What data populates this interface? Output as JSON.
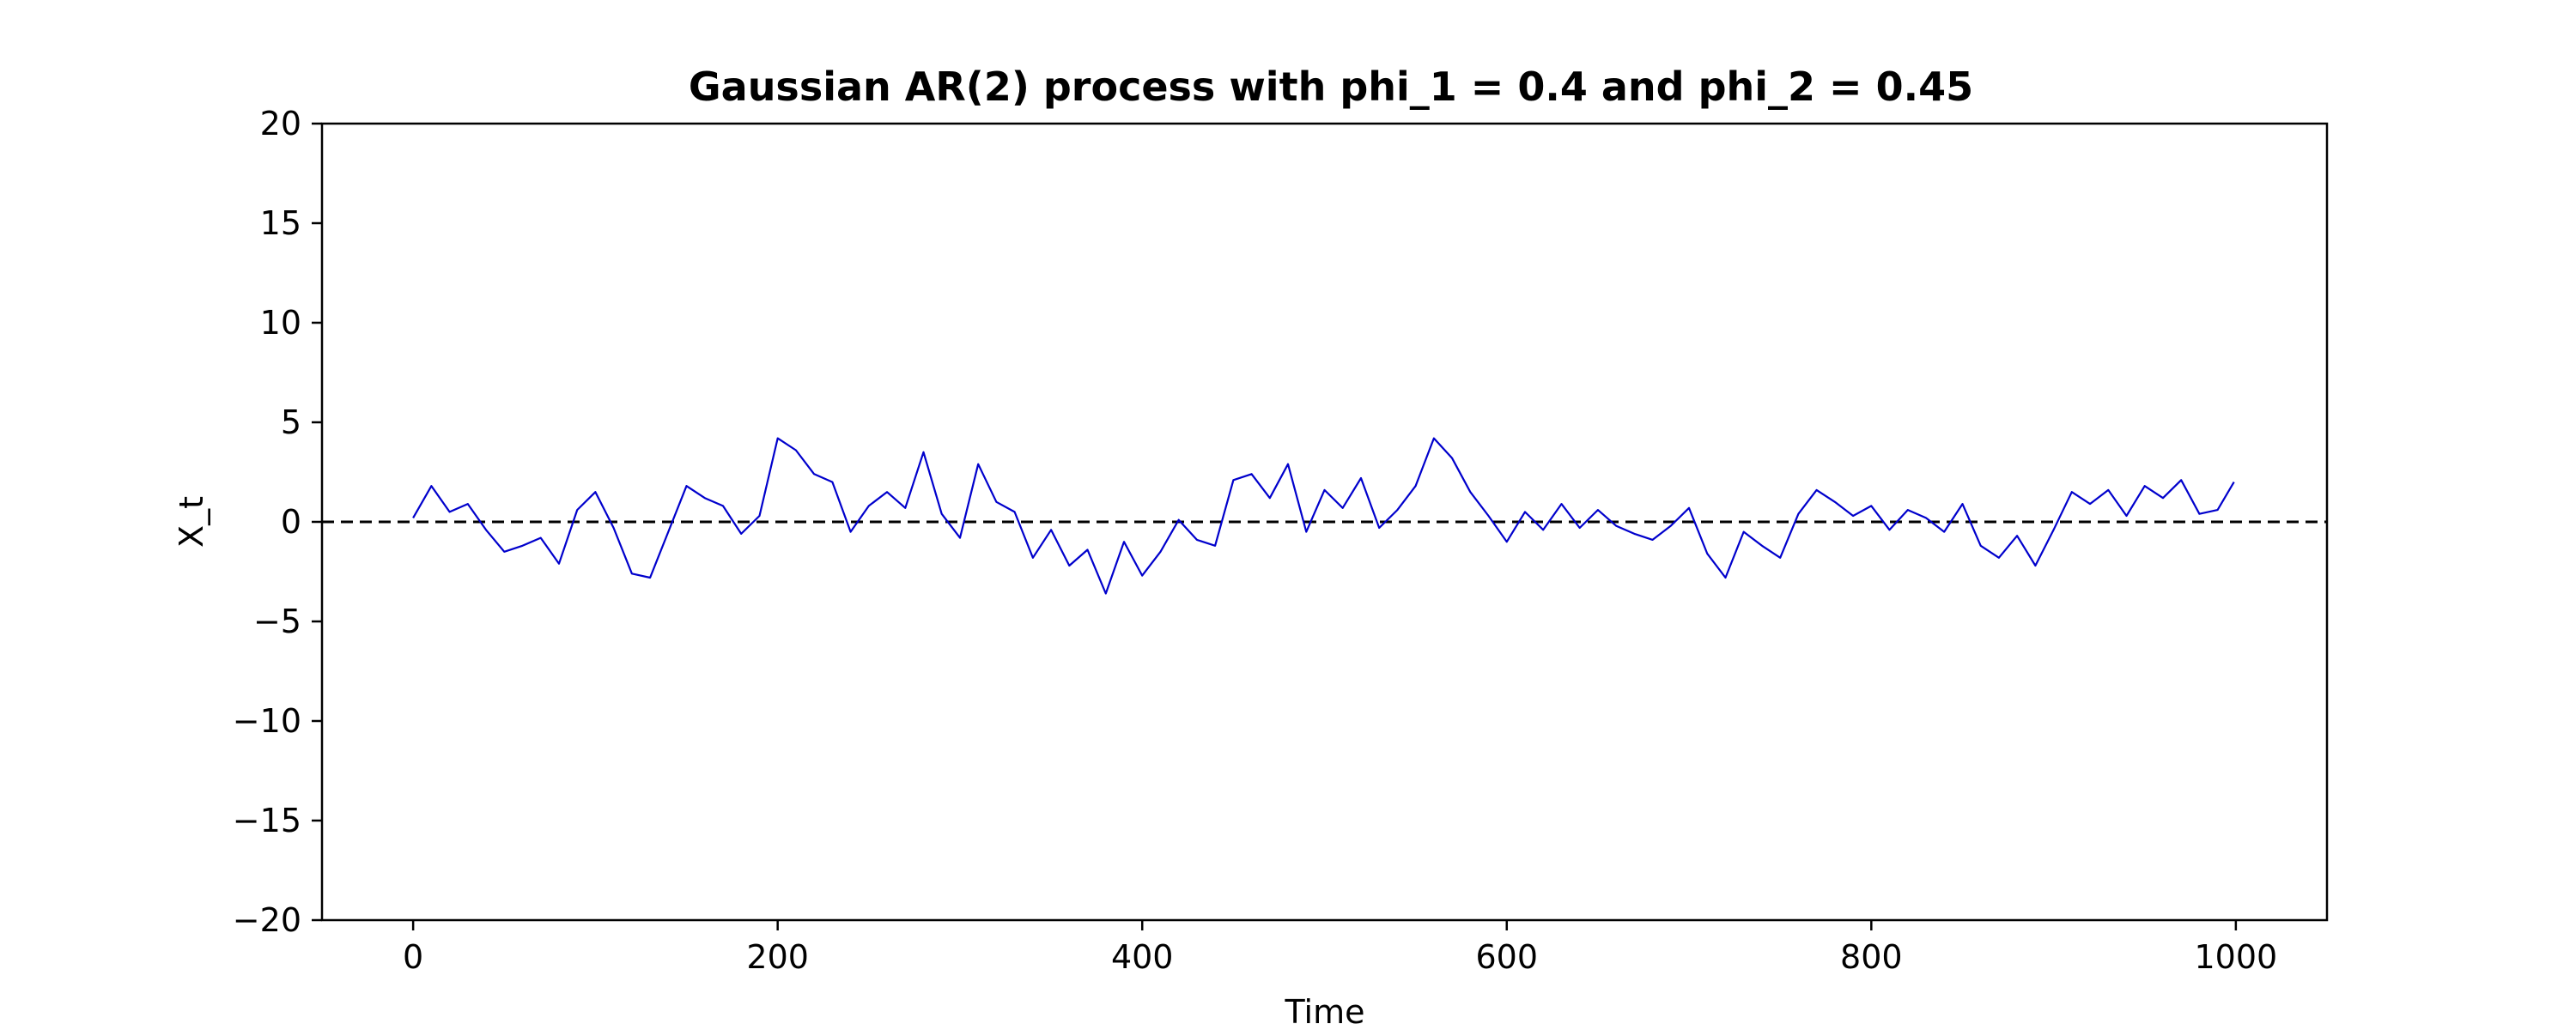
{
  "chart_data": {
    "type": "line",
    "title": "Gaussian AR(2) process with phi_1 = 0.4 and phi_2 = 0.45",
    "xlabel": "Time",
    "ylabel": "X_t",
    "xlim": [
      -50,
      1050
    ],
    "ylim": [
      -20,
      20
    ],
    "x_ticks": [
      0,
      200,
      400,
      600,
      800,
      1000
    ],
    "x_tick_labels": [
      "0",
      "200",
      "400",
      "600",
      "800",
      "1000"
    ],
    "y_ticks": [
      -20,
      -15,
      -10,
      -5,
      0,
      5,
      10,
      15,
      20
    ],
    "y_tick_labels": [
      "−20",
      "−15",
      "−10",
      "−5",
      "0",
      "5",
      "10",
      "15",
      "20"
    ],
    "grid": false,
    "legend": "none",
    "reference_line": {
      "y": 0,
      "style": "dashed",
      "color": "#000000"
    },
    "series": [
      {
        "color": "#0000cc",
        "x": [
          0,
          10,
          20,
          30,
          40,
          50,
          60,
          70,
          80,
          90,
          100,
          110,
          120,
          130,
          140,
          150,
          160,
          170,
          180,
          190,
          200,
          210,
          220,
          230,
          240,
          250,
          260,
          270,
          280,
          290,
          300,
          310,
          320,
          330,
          340,
          350,
          360,
          370,
          380,
          390,
          400,
          410,
          420,
          430,
          440,
          450,
          460,
          470,
          480,
          490,
          500,
          510,
          520,
          530,
          540,
          550,
          560,
          570,
          580,
          590,
          600,
          610,
          620,
          630,
          640,
          650,
          660,
          670,
          680,
          690,
          700,
          710,
          720,
          730,
          740,
          750,
          760,
          770,
          780,
          790,
          800,
          810,
          820,
          830,
          840,
          850,
          860,
          870,
          880,
          890,
          900,
          910,
          920,
          930,
          940,
          950,
          960,
          970,
          980,
          990,
          999
        ],
        "y": [
          0.2,
          1.8,
          0.5,
          0.9,
          -0.4,
          -1.5,
          -1.2,
          -0.8,
          -2.1,
          0.6,
          1.5,
          -0.3,
          -2.6,
          -2.8,
          -0.5,
          1.8,
          1.2,
          0.8,
          -0.6,
          0.3,
          4.2,
          3.6,
          2.4,
          2.0,
          -0.5,
          0.8,
          1.5,
          0.7,
          3.5,
          0.4,
          -0.8,
          2.9,
          1.0,
          0.5,
          -1.8,
          -0.4,
          -2.2,
          -1.4,
          -3.6,
          -1.0,
          -2.7,
          -1.5,
          0.1,
          -0.9,
          -1.2,
          2.1,
          2.4,
          1.2,
          2.9,
          -0.5,
          1.6,
          0.7,
          2.2,
          -0.3,
          0.6,
          1.8,
          4.2,
          3.2,
          1.5,
          0.3,
          -1.0,
          0.5,
          -0.4,
          0.9,
          -0.3,
          0.6,
          -0.2,
          -0.6,
          -0.9,
          -0.2,
          0.7,
          -1.6,
          -2.8,
          -0.5,
          -1.2,
          -1.8,
          0.4,
          1.6,
          1.0,
          0.3,
          0.8,
          -0.4,
          0.6,
          0.2,
          -0.5,
          0.9,
          -1.2,
          -1.8,
          -0.7,
          -2.2,
          -0.4,
          1.5,
          0.9,
          1.6,
          0.3,
          1.8,
          1.2,
          2.1,
          0.4,
          0.6,
          2.0
        ]
      }
    ]
  }
}
